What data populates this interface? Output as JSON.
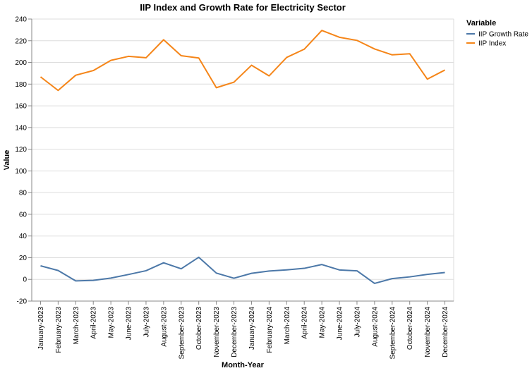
{
  "chart_data": {
    "type": "line",
    "title": "IIP Index and Growth Rate for Electricity Sector",
    "xlabel": "Month-Year",
    "ylabel": "Value",
    "ylim": [
      -20,
      240
    ],
    "yticks": [
      -20,
      0,
      20,
      40,
      60,
      80,
      100,
      120,
      140,
      160,
      180,
      200,
      220,
      240
    ],
    "grid": true,
    "legend": {
      "title": "Variable",
      "placement": "top-right"
    },
    "categories": [
      "January-2023",
      "February-2023",
      "March-2023",
      "April-2023",
      "May-2023",
      "June-2023",
      "July-2023",
      "August-2023",
      "September-2023",
      "October-2023",
      "November-2023",
      "December-2023",
      "January-2024",
      "February-2024",
      "March-2024",
      "April-2024",
      "May-2024",
      "June-2024",
      "July-2024",
      "August-2024",
      "September-2024",
      "October-2024",
      "November-2024",
      "December-2024"
    ],
    "series": [
      {
        "name": "IIP Growth Rate",
        "color": "#4c78a8",
        "values": [
          12.5,
          8.2,
          -1.4,
          -0.9,
          1.2,
          4.5,
          8.0,
          15.3,
          9.8,
          20.4,
          5.8,
          1.1,
          5.6,
          7.7,
          8.8,
          10.2,
          13.7,
          8.7,
          7.9,
          -3.7,
          0.7,
          2.3,
          4.6,
          6.3
        ]
      },
      {
        "name": "IIP Index",
        "color": "#f58518",
        "values": [
          186.7,
          174.2,
          188.2,
          192.5,
          201.9,
          205.6,
          204.3,
          220.9,
          206.2,
          204.1,
          176.7,
          181.8,
          197.4,
          187.6,
          204.6,
          212.2,
          229.5,
          223.2,
          220.3,
          212.4,
          207.0,
          208.0,
          184.6,
          193.0
        ]
      }
    ]
  }
}
